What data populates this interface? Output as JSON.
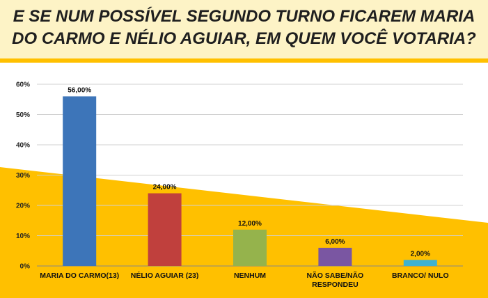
{
  "title": "E SE NUM POSSÍVEL SEGUNDO TURNO FICAREM MARIA DO CARMO E NÉLIO AGUIAR, EM QUEM VOCÊ VOTARIA?",
  "colors": {
    "accent": "#ffc000",
    "header_bg": "#fdf3c6"
  },
  "chart_data": {
    "type": "bar",
    "categories": [
      "MARIA DO CARMO(13)",
      "NÉLIO AGUIAR (23)",
      "NENHUM",
      "NÃO SABE/NÃO RESPONDEU",
      "BRANCO/ NULO"
    ],
    "values": [
      56,
      24,
      12,
      6,
      2
    ],
    "data_labels": [
      "56,00%",
      "24,00%",
      "12,00%",
      "6,00%",
      "2,00%"
    ],
    "y_ticks": [
      "0%",
      "10%",
      "20%",
      "30%",
      "40%",
      "50%",
      "60%"
    ],
    "ylim": [
      0,
      60
    ],
    "grid": true,
    "bar_colors": [
      "#3d75b9",
      "#c0403d",
      "#95b34c",
      "#7a56a2",
      "#3fb2cf"
    ]
  }
}
